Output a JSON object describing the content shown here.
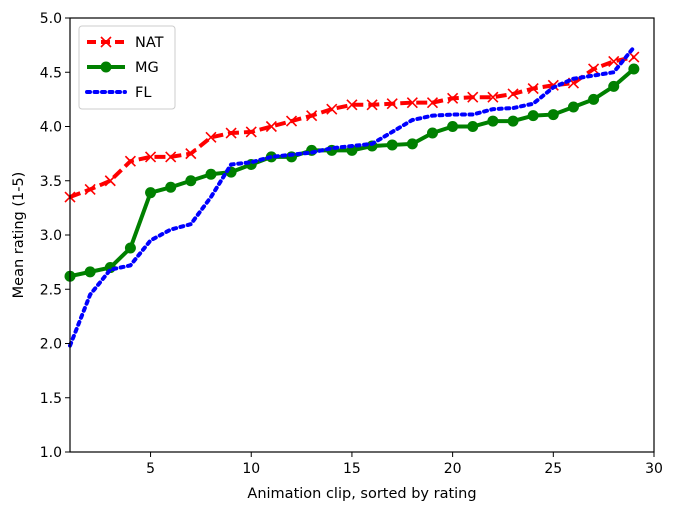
{
  "chart_data": {
    "type": "line",
    "title": "",
    "xlabel": "Animation clip, sorted by rating",
    "ylabel": "Mean rating (1-5)",
    "xlim": [
      1,
      30
    ],
    "ylim": [
      1.0,
      5.0
    ],
    "xticks": [
      5,
      10,
      15,
      20,
      25,
      30
    ],
    "yticks": [
      "1.0",
      "1.5",
      "2.0",
      "2.5",
      "3.0",
      "3.5",
      "4.0",
      "4.5",
      "5.0"
    ],
    "grid": false,
    "legend_position": "top-left",
    "series": [
      {
        "name": "NAT",
        "color": "#ff0000",
        "line_style": "dashed",
        "marker": "x",
        "x": [
          1,
          2,
          3,
          4,
          5,
          6,
          7,
          8,
          9,
          10,
          11,
          12,
          13,
          14,
          15,
          16,
          17,
          18,
          19,
          20,
          21,
          22,
          23,
          24,
          25,
          26,
          27,
          28,
          29
        ],
        "values": [
          3.35,
          3.42,
          3.5,
          3.68,
          3.72,
          3.72,
          3.75,
          3.9,
          3.94,
          3.95,
          4.0,
          4.05,
          4.1,
          4.16,
          4.2,
          4.2,
          4.21,
          4.22,
          4.22,
          4.26,
          4.27,
          4.27,
          4.3,
          4.35,
          4.38,
          4.4,
          4.53,
          4.6,
          4.64
        ]
      },
      {
        "name": "MG",
        "color": "#008000",
        "line_style": "solid",
        "marker": "o",
        "x": [
          1,
          2,
          3,
          4,
          5,
          6,
          7,
          8,
          9,
          10,
          11,
          12,
          13,
          14,
          15,
          16,
          17,
          18,
          19,
          20,
          21,
          22,
          23,
          24,
          25,
          26,
          27,
          28,
          29
        ],
        "values": [
          2.62,
          2.66,
          2.7,
          2.88,
          3.39,
          3.44,
          3.5,
          3.56,
          3.58,
          3.65,
          3.72,
          3.72,
          3.78,
          3.78,
          3.78,
          3.82,
          3.83,
          3.84,
          3.94,
          4.0,
          4.0,
          4.05,
          4.05,
          4.1,
          4.11,
          4.18,
          4.25,
          4.37,
          4.53
        ]
      },
      {
        "name": "FL",
        "color": "#0000ff",
        "line_style": "dotted",
        "marker": "none",
        "x": [
          1,
          2,
          3,
          4,
          5,
          6,
          7,
          8,
          9,
          10,
          11,
          12,
          13,
          14,
          15,
          16,
          17,
          18,
          19,
          20,
          21,
          22,
          23,
          24,
          25,
          26,
          27,
          28,
          29
        ],
        "values": [
          1.98,
          2.45,
          2.68,
          2.72,
          2.95,
          3.05,
          3.1,
          3.35,
          3.65,
          3.67,
          3.72,
          3.74,
          3.76,
          3.8,
          3.82,
          3.84,
          3.95,
          4.06,
          4.1,
          4.11,
          4.11,
          4.16,
          4.17,
          4.21,
          4.36,
          4.44,
          4.47,
          4.5,
          4.73
        ]
      }
    ]
  }
}
